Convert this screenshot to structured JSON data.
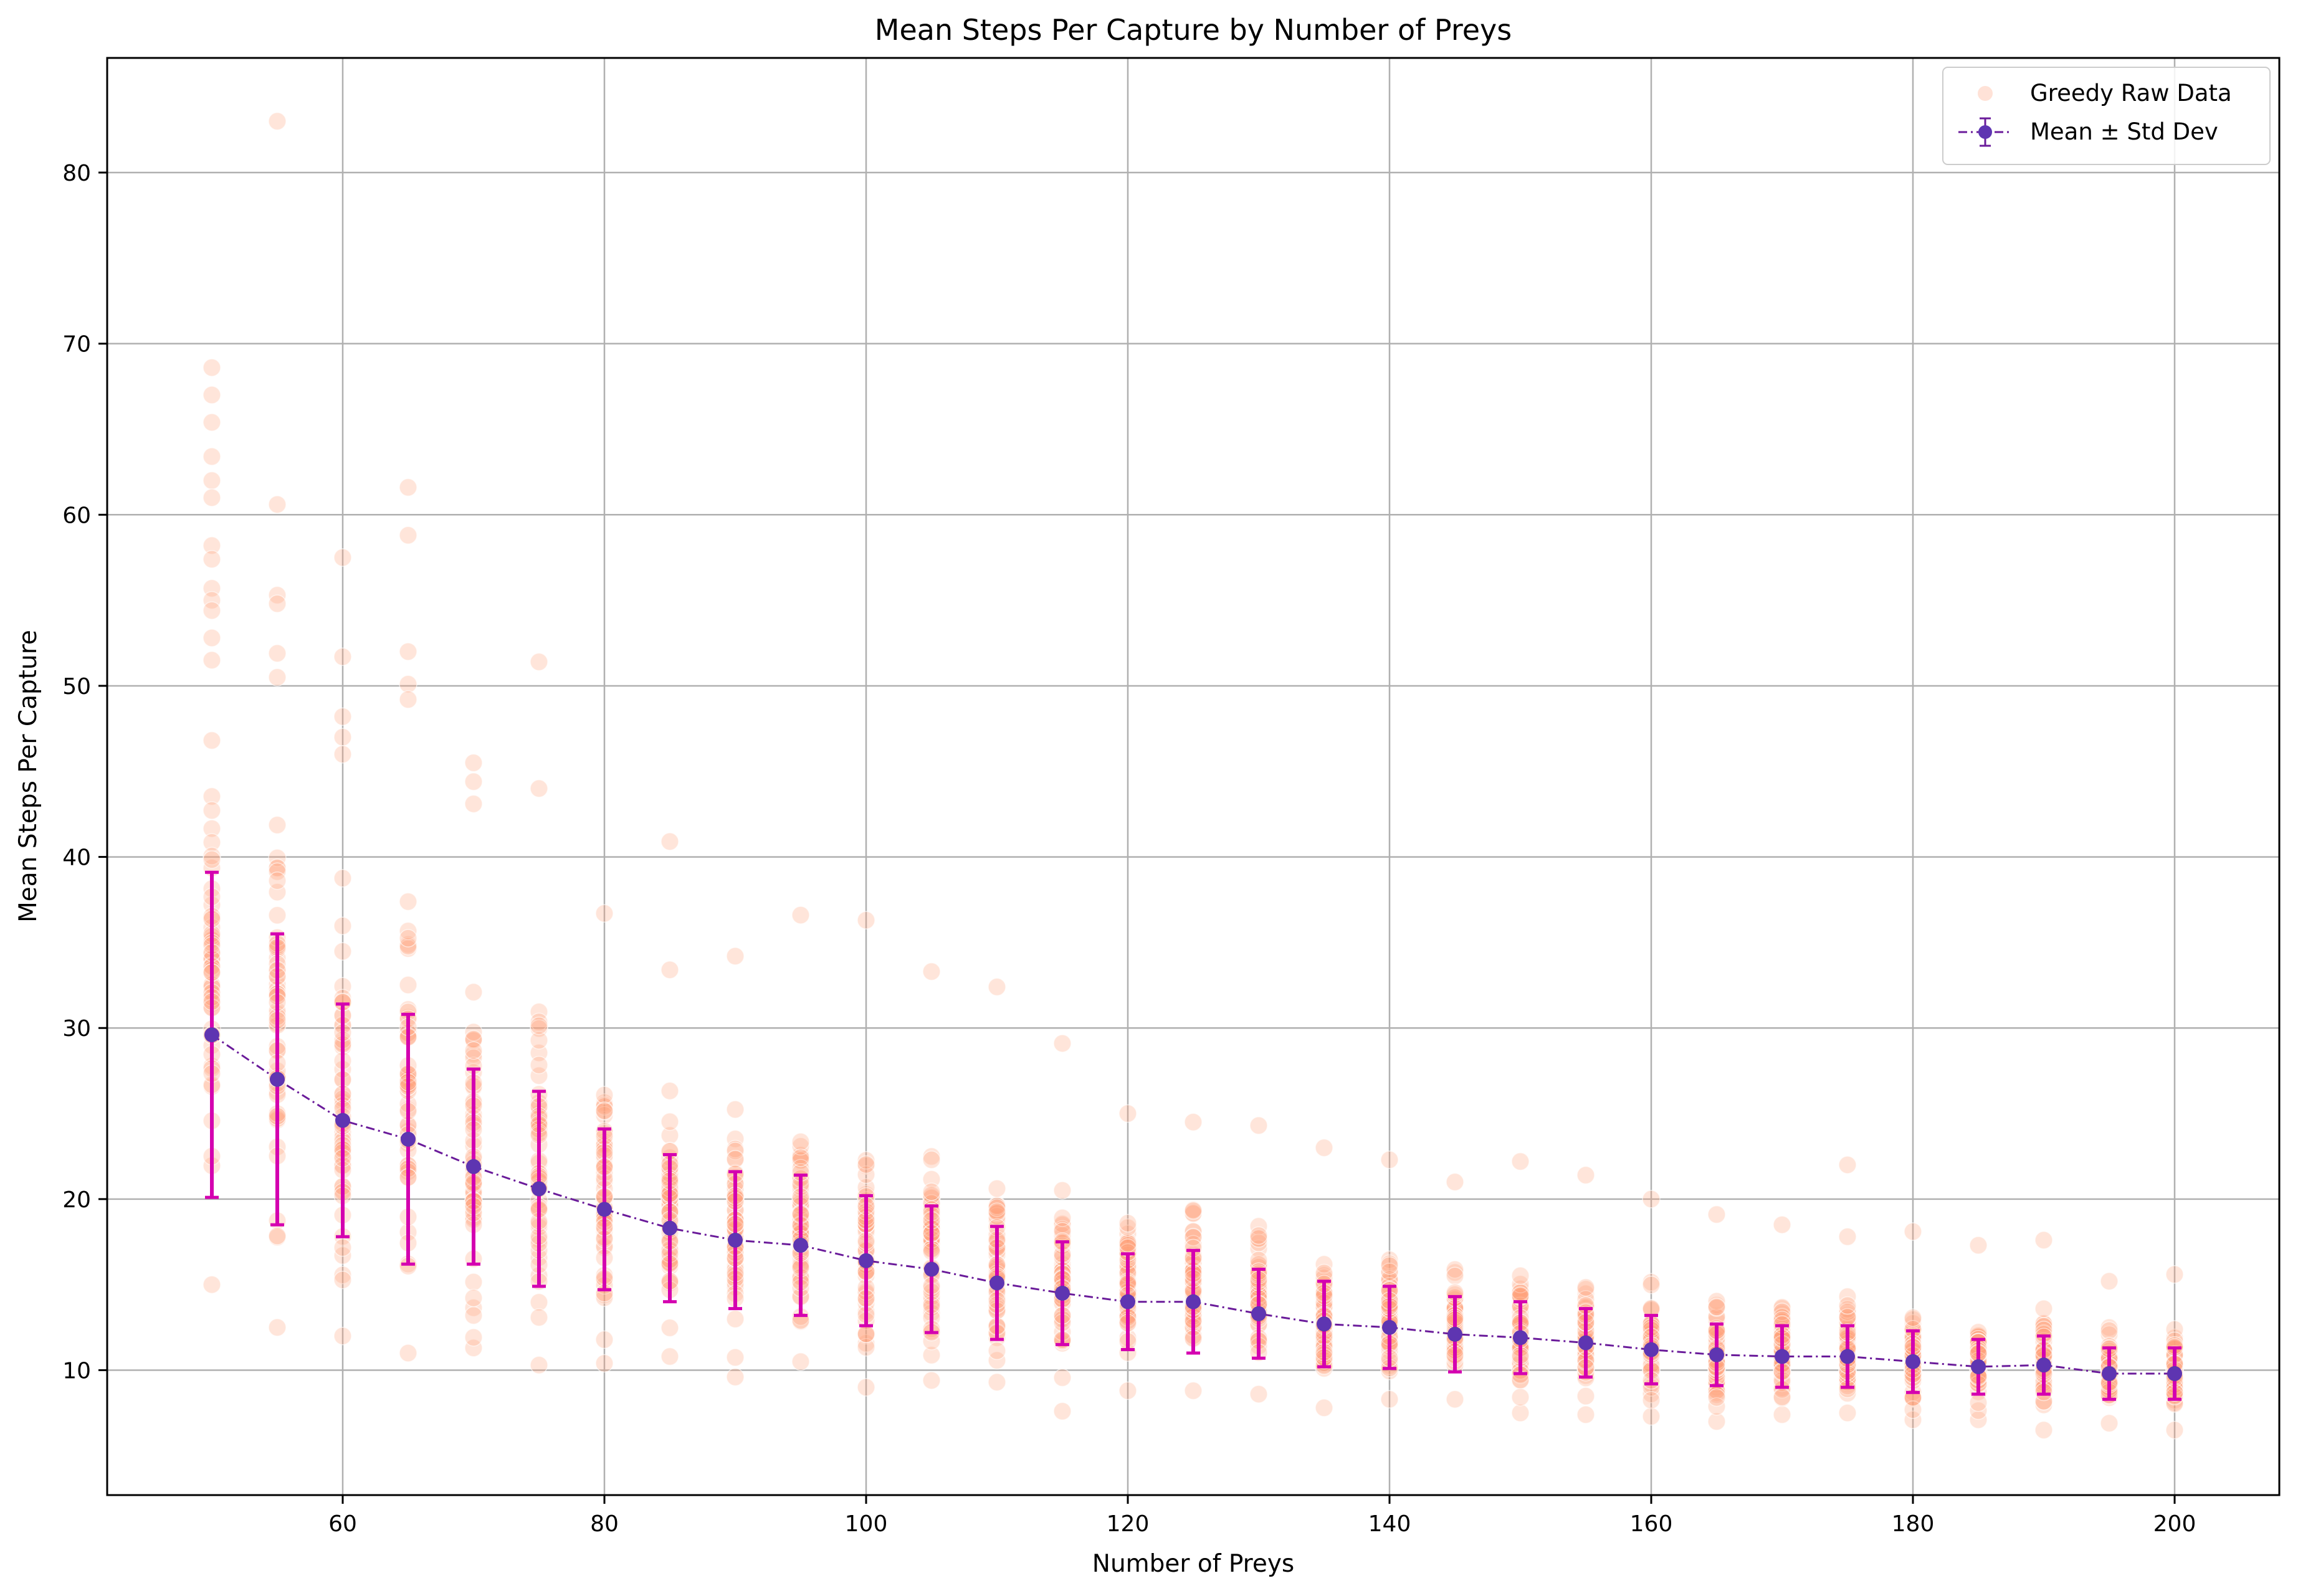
{
  "chart_data": {
    "type": "scatter",
    "title": "Mean Steps Per Capture by Number of Preys",
    "xlabel": "Number of Preys",
    "ylabel": "Mean Steps Per Capture",
    "xlim": [
      42,
      208
    ],
    "ylim": [
      2.7,
      86.7
    ],
    "xticks": [
      60,
      80,
      100,
      120,
      140,
      160,
      180,
      200
    ],
    "yticks": [
      10,
      20,
      30,
      40,
      50,
      60,
      70,
      80
    ],
    "grid": true,
    "legend": {
      "placement": "top-right",
      "entries": [
        "Greedy Raw Data",
        "Mean ± Std Dev"
      ]
    },
    "colors": {
      "raw": "#ffa07a",
      "mean_line": "#6a1b9a",
      "mean_marker": "#5e35b1",
      "errorbar": "#d400b0"
    },
    "series": [
      {
        "name": "Greedy Raw Data",
        "kind": "scatter",
        "groups": [
          {
            "x": 50,
            "min": 15.0,
            "max": 68.6,
            "outliers": [
              67.0,
              65.4,
              63.4,
              62.0,
              61.0,
              58.2,
              57.4,
              55.7,
              55.0,
              54.4,
              52.8,
              51.5
            ]
          },
          {
            "x": 55,
            "min": 12.5,
            "max": 60.6,
            "outliers": [
              83.0,
              55.3,
              54.8,
              51.9,
              50.5
            ]
          },
          {
            "x": 60,
            "min": 12.0,
            "max": 57.5,
            "outliers": [
              51.7,
              48.2,
              47.0,
              46.0
            ]
          },
          {
            "x": 65,
            "min": 11.0,
            "max": 52.0,
            "outliers": [
              61.6,
              58.8,
              50.1,
              49.2
            ]
          },
          {
            "x": 70,
            "min": 11.3,
            "max": 45.5,
            "outliers": [
              44.4,
              43.1
            ]
          },
          {
            "x": 75,
            "min": 10.3,
            "max": 44.0,
            "outliers": [
              51.4
            ]
          },
          {
            "x": 80,
            "min": 10.4,
            "max": 36.7,
            "outliers": []
          },
          {
            "x": 85,
            "min": 10.8,
            "max": 33.4,
            "outliers": [
              40.9
            ]
          },
          {
            "x": 90,
            "min": 9.6,
            "max": 34.2,
            "outliers": []
          },
          {
            "x": 95,
            "min": 10.5,
            "max": 36.6,
            "outliers": []
          },
          {
            "x": 100,
            "min": 9.0,
            "max": 36.3,
            "outliers": []
          },
          {
            "x": 105,
            "min": 9.4,
            "max": 33.3,
            "outliers": []
          },
          {
            "x": 110,
            "min": 9.3,
            "max": 32.4,
            "outliers": []
          },
          {
            "x": 115,
            "min": 7.6,
            "max": 29.1,
            "outliers": []
          },
          {
            "x": 120,
            "min": 8.8,
            "max": 25.0,
            "outliers": []
          },
          {
            "x": 125,
            "min": 8.8,
            "max": 24.5,
            "outliers": []
          },
          {
            "x": 130,
            "min": 8.6,
            "max": 24.3,
            "outliers": []
          },
          {
            "x": 135,
            "min": 7.8,
            "max": 23.0,
            "outliers": []
          },
          {
            "x": 140,
            "min": 8.3,
            "max": 22.3,
            "outliers": []
          },
          {
            "x": 145,
            "min": 8.3,
            "max": 21.0,
            "outliers": []
          },
          {
            "x": 150,
            "min": 7.5,
            "max": 22.2,
            "outliers": []
          },
          {
            "x": 155,
            "min": 7.4,
            "max": 21.4,
            "outliers": []
          },
          {
            "x": 160,
            "min": 7.3,
            "max": 20.0,
            "outliers": []
          },
          {
            "x": 165,
            "min": 7.0,
            "max": 19.1,
            "outliers": []
          },
          {
            "x": 170,
            "min": 7.4,
            "max": 18.5,
            "outliers": []
          },
          {
            "x": 175,
            "min": 7.5,
            "max": 17.8,
            "outliers": [
              22.0
            ]
          },
          {
            "x": 180,
            "min": 7.1,
            "max": 18.1,
            "outliers": []
          },
          {
            "x": 185,
            "min": 7.1,
            "max": 17.3,
            "outliers": []
          },
          {
            "x": 190,
            "min": 6.5,
            "max": 17.6,
            "outliers": []
          },
          {
            "x": 195,
            "min": 6.9,
            "max": 15.2,
            "outliers": []
          },
          {
            "x": 200,
            "min": 6.5,
            "max": 15.6,
            "outliers": []
          }
        ]
      },
      {
        "name": "Mean ± Std Dev",
        "kind": "errorbar",
        "x": [
          50,
          55,
          60,
          65,
          70,
          75,
          80,
          85,
          90,
          95,
          100,
          105,
          110,
          115,
          120,
          125,
          130,
          135,
          140,
          145,
          150,
          155,
          160,
          165,
          170,
          175,
          180,
          185,
          190,
          195,
          200
        ],
        "mean": [
          29.6,
          27.0,
          24.6,
          23.5,
          21.9,
          20.6,
          19.4,
          18.3,
          17.6,
          17.3,
          16.4,
          15.9,
          15.1,
          14.5,
          14.0,
          14.0,
          13.3,
          12.7,
          12.5,
          12.1,
          11.9,
          11.6,
          11.2,
          10.9,
          10.8,
          10.8,
          10.5,
          10.2,
          10.3,
          9.8,
          9.8
        ],
        "std": [
          9.5,
          8.5,
          6.8,
          7.3,
          5.7,
          5.7,
          4.7,
          4.3,
          4.0,
          4.1,
          3.8,
          3.7,
          3.3,
          3.0,
          2.8,
          3.0,
          2.6,
          2.5,
          2.4,
          2.2,
          2.1,
          2.0,
          2.0,
          1.8,
          1.8,
          1.8,
          1.8,
          1.6,
          1.7,
          1.5,
          1.5
        ]
      }
    ]
  }
}
